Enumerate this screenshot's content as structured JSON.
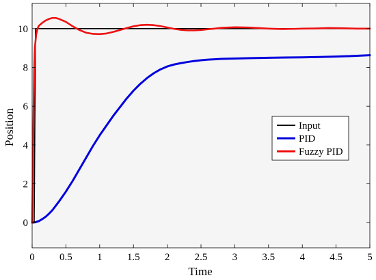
{
  "chart_data": {
    "type": "line",
    "title": "",
    "xlabel": "Time",
    "ylabel": "Position",
    "xlim": [
      0,
      5
    ],
    "ylim": [
      -1.3,
      11.3
    ],
    "xticks": [
      0,
      0.5,
      1,
      1.5,
      2,
      2.5,
      3,
      3.5,
      4,
      4.5,
      5
    ],
    "xtick_labels": [
      "0",
      "0.5",
      "1",
      "1.5",
      "2",
      "2.5",
      "3",
      "3.5",
      "4",
      "4.5",
      "5"
    ],
    "yticks": [
      0,
      2,
      4,
      6,
      8,
      10
    ],
    "ytick_labels": [
      "0",
      "2",
      "4",
      "6",
      "8",
      "10"
    ],
    "grid": false,
    "legend_position": "right",
    "background": "#f5f5f5",
    "series": [
      {
        "name": "Input",
        "color": "#000000",
        "x": [
          0,
          0.03,
          0.05,
          5
        ],
        "y": [
          0,
          0,
          10,
          10
        ]
      },
      {
        "name": "PID",
        "color": "#0000dd",
        "x": [
          0,
          0.05,
          0.1,
          0.15,
          0.2,
          0.25,
          0.3,
          0.4,
          0.5,
          0.6,
          0.7,
          0.8,
          0.9,
          1.0,
          1.1,
          1.2,
          1.3,
          1.4,
          1.5,
          1.6,
          1.7,
          1.8,
          1.9,
          2.0,
          2.1,
          2.2,
          2.3,
          2.4,
          2.5,
          2.6,
          2.7,
          2.8,
          2.9,
          3.0,
          3.25,
          3.5,
          3.75,
          4.0,
          4.25,
          4.5,
          4.75,
          5.0
        ],
        "y": [
          0,
          0.02,
          0.08,
          0.18,
          0.3,
          0.46,
          0.64,
          1.1,
          1.6,
          2.15,
          2.75,
          3.35,
          3.95,
          4.5,
          5.0,
          5.5,
          5.95,
          6.4,
          6.8,
          7.15,
          7.45,
          7.7,
          7.9,
          8.05,
          8.15,
          8.22,
          8.28,
          8.33,
          8.37,
          8.4,
          8.42,
          8.44,
          8.45,
          8.46,
          8.48,
          8.5,
          8.51,
          8.52,
          8.54,
          8.56,
          8.59,
          8.63
        ]
      },
      {
        "name": "Fuzzy PID",
        "color": "#ee1111",
        "x": [
          0,
          0.01,
          0.02,
          0.03,
          0.04,
          0.06,
          0.08,
          0.1,
          0.15,
          0.2,
          0.25,
          0.3,
          0.35,
          0.4,
          0.5,
          0.6,
          0.7,
          0.8,
          0.9,
          1.0,
          1.1,
          1.2,
          1.3,
          1.4,
          1.5,
          1.6,
          1.7,
          1.8,
          1.9,
          2.0,
          2.1,
          2.2,
          2.3,
          2.4,
          2.5,
          2.6,
          2.7,
          2.8,
          3.0,
          3.2,
          3.3,
          3.5,
          3.7,
          3.9,
          4.0,
          4.2,
          4.4,
          4.6,
          4.8,
          5.0
        ],
        "y": [
          0,
          2.5,
          5.5,
          7.8,
          9.0,
          9.7,
          10.0,
          10.15,
          10.3,
          10.42,
          10.5,
          10.55,
          10.55,
          10.5,
          10.35,
          10.12,
          9.93,
          9.79,
          9.73,
          9.72,
          9.75,
          9.83,
          9.93,
          10.03,
          10.12,
          10.18,
          10.2,
          10.18,
          10.13,
          10.06,
          9.99,
          9.94,
          9.91,
          9.91,
          9.93,
          9.97,
          10.0,
          10.04,
          10.07,
          10.06,
          10.04,
          10.0,
          9.98,
          9.99,
          10.0,
          10.01,
          10.03,
          10.02,
          10.0,
          10.0
        ]
      }
    ]
  }
}
